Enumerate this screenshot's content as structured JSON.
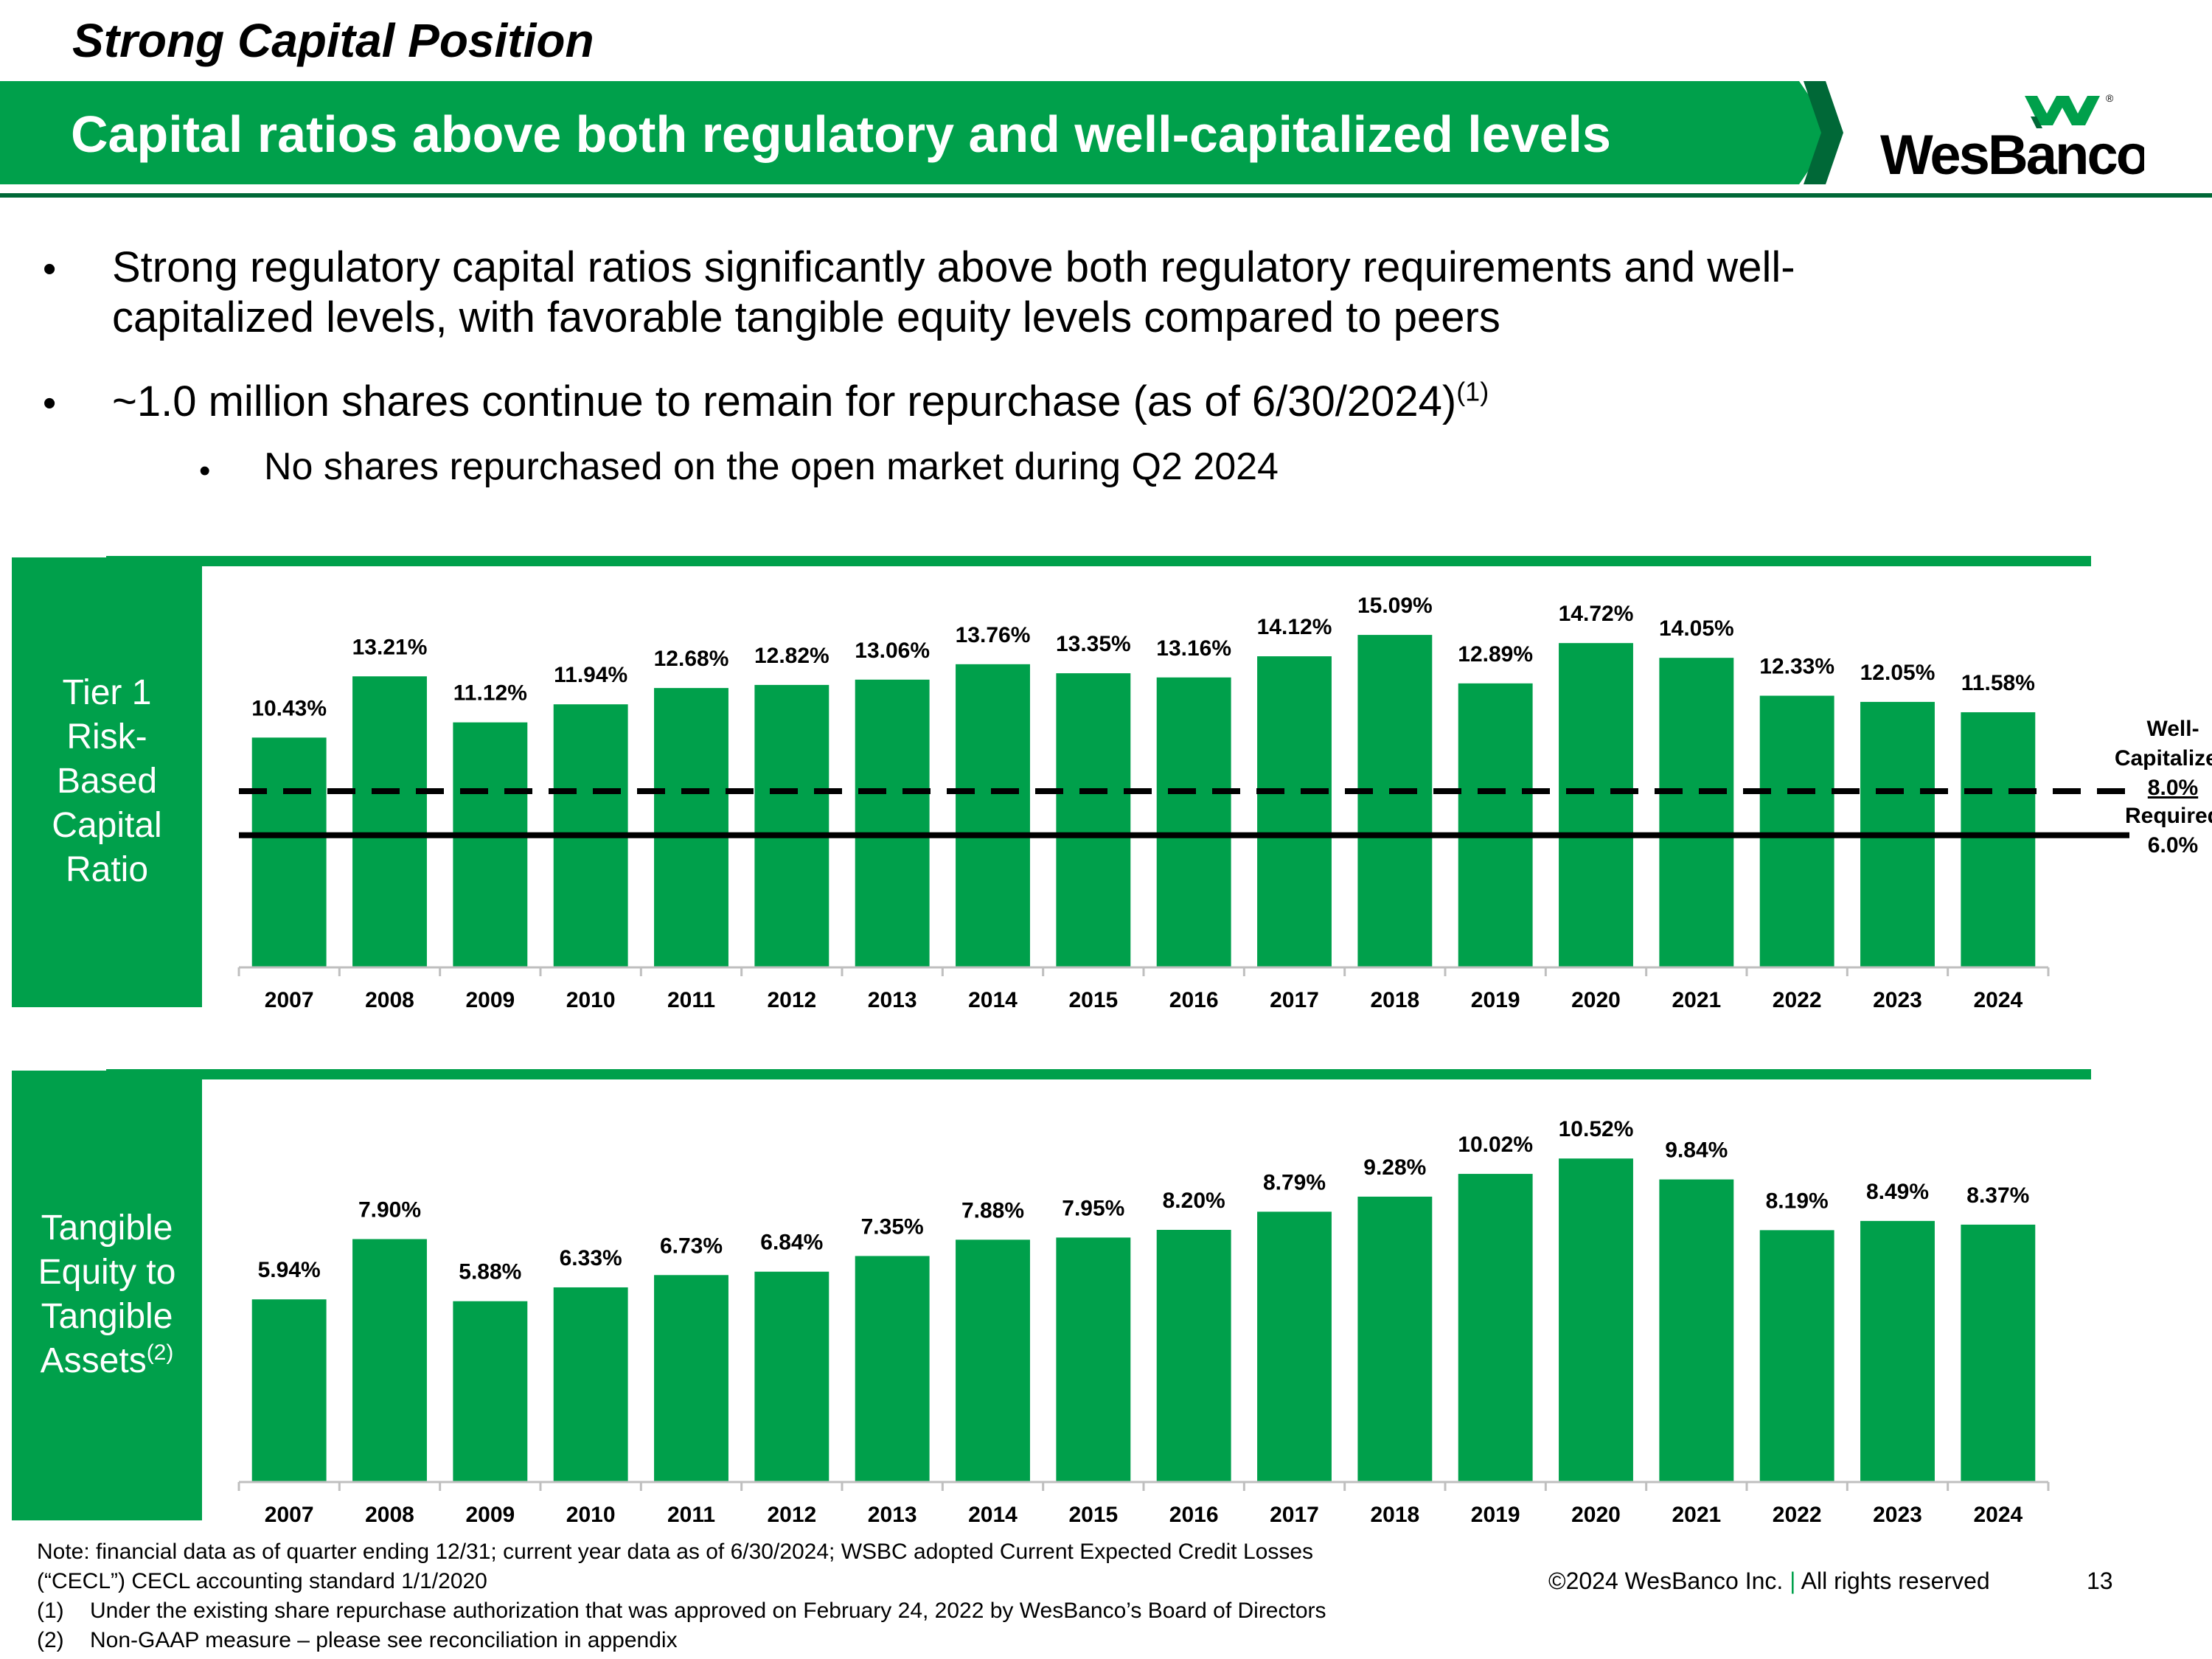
{
  "slide": {
    "subtitle": "Strong Capital Position",
    "title": "Capital ratios above both regulatory and well-capitalized levels",
    "logo_text": "WesBanco",
    "logo_mark": "®"
  },
  "bullets": {
    "b1_line1": "Strong regulatory capital ratios significantly above both regulatory requirements and well-",
    "b1_line2": "capitalized levels, with favorable tangible equity levels compared to peers",
    "b2_text": "~1.0 million shares continue to remain for repurchase (as of 6/30/2024)",
    "b2_ref": "(1)",
    "sub1": "No shares repurchased on the open market during Q2 2024",
    "bullet_char": "•"
  },
  "chart_data": [
    {
      "type": "bar",
      "title": "Tier 1 Risk-Based Capital Ratio",
      "categories": [
        "2007",
        "2008",
        "2009",
        "2010",
        "2011",
        "2012",
        "2013",
        "2014",
        "2015",
        "2016",
        "2017",
        "2018",
        "2019",
        "2020",
        "2021",
        "2022",
        "2023",
        "2024"
      ],
      "values": [
        10.43,
        13.21,
        11.12,
        11.94,
        12.68,
        12.82,
        13.06,
        13.76,
        13.35,
        13.16,
        14.12,
        15.09,
        12.89,
        14.72,
        14.05,
        12.33,
        12.05,
        11.58
      ],
      "value_labels": [
        "10.43%",
        "13.21%",
        "11.12%",
        "11.94%",
        "12.68%",
        "12.82%",
        "13.06%",
        "13.76%",
        "13.35%",
        "13.16%",
        "14.12%",
        "15.09%",
        "12.89%",
        "14.72%",
        "14.05%",
        "12.33%",
        "12.05%",
        "11.58%"
      ],
      "ylim": [
        0,
        16.8
      ],
      "reference_lines": [
        {
          "name": "Well-Capitalized",
          "value": 8.0,
          "label_lines": [
            "Well-",
            "Capitalized"
          ],
          "value_label": "8.0%",
          "style": "dashed"
        },
        {
          "name": "Required",
          "value": 6.0,
          "label_lines": [
            "Required"
          ],
          "value_label": "6.0%",
          "style": "solid"
        }
      ],
      "bar_color": "#00a04b",
      "grid": false,
      "legend": "none"
    },
    {
      "type": "bar",
      "title": "Tangible Equity to Tangible Assets",
      "title_ref": "(2)",
      "categories": [
        "2007",
        "2008",
        "2009",
        "2010",
        "2011",
        "2012",
        "2013",
        "2014",
        "2015",
        "2016",
        "2017",
        "2018",
        "2019",
        "2020",
        "2021",
        "2022",
        "2023",
        "2024"
      ],
      "values": [
        5.94,
        7.9,
        5.88,
        6.33,
        6.73,
        6.84,
        7.35,
        7.88,
        7.95,
        8.2,
        8.79,
        9.28,
        10.02,
        10.52,
        9.84,
        8.19,
        8.49,
        8.37
      ],
      "value_labels": [
        "5.94%",
        "7.90%",
        "5.88%",
        "6.33%",
        "6.73%",
        "6.84%",
        "7.35%",
        "7.88%",
        "7.95%",
        "8.20%",
        "8.79%",
        "9.28%",
        "10.02%",
        "10.52%",
        "9.84%",
        "8.19%",
        "8.49%",
        "8.37%"
      ],
      "ylim": [
        0,
        11.7
      ],
      "bar_color": "#00a04b",
      "grid": false,
      "legend": "none"
    }
  ],
  "panels": {
    "p1_label_lines": [
      "Tier 1",
      "Risk-",
      "Based",
      "Capital",
      "Ratio"
    ],
    "p2_label_lines": [
      "Tangible",
      "Equity to",
      "Tangible",
      "Assets"
    ],
    "p2_label_ref": "(2)"
  },
  "footer": {
    "note1": "Note: financial data as of quarter ending 12/31; current year data as of 6/30/2024; WSBC adopted Current Expected Credit Losses",
    "note2": "(“CECL”) CECL accounting standard 1/1/2020",
    "fn1_num": "(1)",
    "fn1_text": "Under the existing share repurchase authorization that was approved on February 24, 2022 by WesBanco’s Board of Directors",
    "fn2_num": "(2)",
    "fn2_text": "Non-GAAP measure – please see reconciliation in appendix",
    "copyright": "©2024 WesBanco Inc.",
    "copyright_sep": "|",
    "rights": "All rights reserved",
    "page_number": "13"
  },
  "colors": {
    "brand_green": "#00a04b",
    "dark_green": "#006837"
  }
}
